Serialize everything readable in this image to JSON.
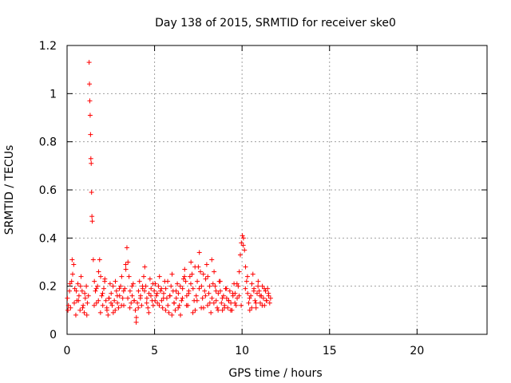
{
  "chart_data": {
    "type": "scatter",
    "title": "Day 138 of 2015, SRMTID for receiver ske0",
    "xlabel": "GPS time / hours",
    "ylabel": "SRMTID / TECUs",
    "xlim": [
      0,
      24
    ],
    "ylim": [
      0,
      1.2
    ],
    "x_ticks": [
      0,
      5,
      10,
      15,
      20
    ],
    "y_ticks": [
      0,
      0.2,
      0.4,
      0.6,
      0.8,
      1,
      1.2
    ],
    "x_tick_labels": [
      "0",
      "5",
      "10",
      "15",
      "20"
    ],
    "y_tick_labels": [
      "0",
      "0.2",
      "0.4",
      "0.6",
      "0.8",
      "1",
      "1.2"
    ],
    "grid": true,
    "marker": "+",
    "marker_color": "#ff0000",
    "series": [
      {
        "name": "ske0",
        "x": [
          0.02,
          0.08,
          0.14,
          0.2,
          0.26,
          0.32,
          0.38,
          0.44,
          0.5,
          0.56,
          0.62,
          0.68,
          0.74,
          0.8,
          0.86,
          0.92,
          0.98,
          1.04,
          1.1,
          1.16,
          1.22,
          1.26,
          1.28,
          1.3,
          1.32,
          1.34,
          1.36,
          1.38,
          1.4,
          1.42,
          1.44,
          1.5,
          1.56,
          1.62,
          1.68,
          1.74,
          1.8,
          1.86,
          1.92,
          1.98,
          2.04,
          2.1,
          2.16,
          2.22,
          2.28,
          2.34,
          2.4,
          2.46,
          2.52,
          2.58,
          2.64,
          2.7,
          2.76,
          2.82,
          2.88,
          2.94,
          3.0,
          3.06,
          3.12,
          3.18,
          3.24,
          3.3,
          3.36,
          3.42,
          3.48,
          3.54,
          3.6,
          3.66,
          3.72,
          3.78,
          3.84,
          3.9,
          3.96,
          4.02,
          4.08,
          4.14,
          4.2,
          4.26,
          4.32,
          4.38,
          4.44,
          4.5,
          4.56,
          4.62,
          4.68,
          4.74,
          4.8,
          4.86,
          4.92,
          4.98,
          5.04,
          5.1,
          5.16,
          5.22,
          5.28,
          5.34,
          5.4,
          5.46,
          5.52,
          5.58,
          5.64,
          5.7,
          5.76,
          5.82,
          5.88,
          5.94,
          6.0,
          6.06,
          6.12,
          6.18,
          6.24,
          6.3,
          6.36,
          6.42,
          6.48,
          6.54,
          6.6,
          6.66,
          6.72,
          6.78,
          6.84,
          6.9,
          6.96,
          7.02,
          7.08,
          7.14,
          7.2,
          7.26,
          7.32,
          7.38,
          7.44,
          7.5,
          7.56,
          7.62,
          7.68,
          7.74,
          7.8,
          7.86,
          7.92,
          7.98,
          8.04,
          8.1,
          8.16,
          8.22,
          8.28,
          8.34,
          8.4,
          8.46,
          8.52,
          8.58,
          8.64,
          8.7,
          8.76,
          8.82,
          8.88,
          8.94,
          9.0,
          9.06,
          9.12,
          9.18,
          9.24,
          9.3,
          9.36,
          9.42,
          9.48,
          9.54,
          9.6,
          9.66,
          9.72,
          9.78,
          9.84,
          9.9,
          9.96,
          10.02,
          10.08,
          10.14,
          10.2,
          10.26,
          10.32,
          10.38,
          10.44,
          10.5,
          10.56,
          10.62,
          10.68,
          10.74,
          10.8,
          10.86,
          10.92,
          10.98,
          11.04,
          11.1,
          11.16,
          11.22,
          11.28,
          11.34,
          11.4,
          11.46,
          11.52,
          11.58,
          0.05,
          0.17,
          0.29,
          0.41,
          0.53,
          0.65,
          0.77,
          0.89,
          1.01,
          1.13,
          1.55,
          1.67,
          1.79,
          1.91,
          2.03,
          2.15,
          2.27,
          2.39,
          2.51,
          2.63,
          2.75,
          2.87,
          2.99,
          3.11,
          3.23,
          3.35,
          3.47,
          3.59,
          3.71,
          3.83,
          3.95,
          4.07,
          4.19,
          4.31,
          4.43,
          4.55,
          4.67,
          4.79,
          4.91,
          5.03,
          5.15,
          5.27,
          5.39,
          5.51,
          5.63,
          5.75,
          5.87,
          5.99,
          6.11,
          6.23,
          6.35,
          6.47,
          6.59,
          6.71,
          6.83,
          6.95,
          7.07,
          7.19,
          7.31,
          7.43,
          7.55,
          7.67,
          7.79,
          7.91,
          8.03,
          8.15,
          8.27,
          8.39,
          8.51,
          8.63,
          8.75,
          8.87,
          8.99,
          9.11,
          9.23,
          9.35,
          9.47,
          9.59,
          9.71,
          9.83,
          9.95,
          10.07,
          10.19,
          10.31,
          10.43,
          10.55,
          10.67,
          10.79,
          10.91,
          11.03,
          11.15,
          11.27,
          11.39,
          11.51,
          11.63
        ],
        "y": [
          0.15,
          0.12,
          0.18,
          0.11,
          0.22,
          0.25,
          0.29,
          0.19,
          0.08,
          0.14,
          0.21,
          0.16,
          0.1,
          0.24,
          0.18,
          0.12,
          0.09,
          0.15,
          0.2,
          0.13,
          0.16,
          1.13,
          1.04,
          0.97,
          0.91,
          0.83,
          0.73,
          0.71,
          0.59,
          0.49,
          0.47,
          0.31,
          0.22,
          0.18,
          0.13,
          0.2,
          0.26,
          0.31,
          0.24,
          0.16,
          0.12,
          0.19,
          0.23,
          0.14,
          0.1,
          0.08,
          0.15,
          0.21,
          0.17,
          0.12,
          0.09,
          0.14,
          0.22,
          0.18,
          0.13,
          0.11,
          0.16,
          0.2,
          0.24,
          0.15,
          0.12,
          0.19,
          0.27,
          0.36,
          0.3,
          0.24,
          0.18,
          0.13,
          0.16,
          0.21,
          0.14,
          0.1,
          0.07,
          0.13,
          0.18,
          0.22,
          0.16,
          0.12,
          0.19,
          0.24,
          0.28,
          0.2,
          0.15,
          0.11,
          0.17,
          0.23,
          0.19,
          0.14,
          0.12,
          0.18,
          0.21,
          0.16,
          0.13,
          0.2,
          0.24,
          0.18,
          0.14,
          0.11,
          0.17,
          0.22,
          0.19,
          0.15,
          0.12,
          0.09,
          0.16,
          0.2,
          0.25,
          0.18,
          0.13,
          0.1,
          0.15,
          0.21,
          0.17,
          0.12,
          0.08,
          0.14,
          0.19,
          0.23,
          0.27,
          0.22,
          0.16,
          0.12,
          0.18,
          0.24,
          0.3,
          0.25,
          0.19,
          0.14,
          0.1,
          0.16,
          0.22,
          0.28,
          0.34,
          0.26,
          0.2,
          0.15,
          0.11,
          0.18,
          0.23,
          0.29,
          0.24,
          0.17,
          0.13,
          0.09,
          0.15,
          0.21,
          0.26,
          0.2,
          0.14,
          0.11,
          0.17,
          0.22,
          0.18,
          0.13,
          0.1,
          0.16,
          0.12,
          0.19,
          0.15,
          0.11,
          0.14,
          0.18,
          0.13,
          0.1,
          0.16,
          0.21,
          0.17,
          0.12,
          0.15,
          0.2,
          0.26,
          0.33,
          0.38,
          0.41,
          0.4,
          0.35,
          0.28,
          0.22,
          0.17,
          0.13,
          0.1,
          0.16,
          0.21,
          0.25,
          0.19,
          0.14,
          0.11,
          0.17,
          0.22,
          0.18,
          0.13,
          0.16,
          0.2,
          0.15,
          0.12,
          0.18,
          0.14,
          0.19,
          0.16,
          0.13,
          0.1,
          0.21,
          0.31,
          0.13,
          0.18,
          0.14,
          0.2,
          0.11,
          0.17,
          0.08,
          0.12,
          0.19,
          0.14,
          0.09,
          0.17,
          0.22,
          0.11,
          0.15,
          0.13,
          0.2,
          0.1,
          0.16,
          0.19,
          0.12,
          0.18,
          0.29,
          0.15,
          0.11,
          0.2,
          0.14,
          0.05,
          0.11,
          0.15,
          0.2,
          0.18,
          0.13,
          0.09,
          0.16,
          0.21,
          0.14,
          0.17,
          0.12,
          0.19,
          0.15,
          0.1,
          0.22,
          0.16,
          0.08,
          0.13,
          0.18,
          0.11,
          0.2,
          0.15,
          0.24,
          0.12,
          0.17,
          0.21,
          0.09,
          0.28,
          0.14,
          0.19,
          0.11,
          0.25,
          0.16,
          0.12,
          0.2,
          0.31,
          0.13,
          0.18,
          0.1,
          0.22,
          0.15,
          0.11,
          0.19,
          0.14,
          0.1,
          0.17,
          0.13,
          0.21,
          0.16,
          0.12,
          0.37,
          0.19,
          0.24,
          0.15,
          0.11,
          0.18,
          0.13,
          0.2,
          0.16,
          0.12,
          0.19,
          0.14,
          0.17,
          0.15
        ]
      }
    ]
  }
}
